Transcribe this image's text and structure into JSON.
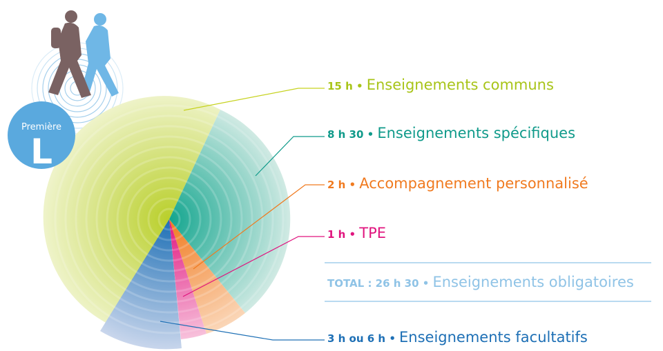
{
  "badge": {
    "top": "Première",
    "letter": "L"
  },
  "items": [
    {
      "hours": "15 h •",
      "label": "Enseignements communs"
    },
    {
      "hours": "8 h 30 •",
      "label": "Enseignements spécifiques"
    },
    {
      "hours": "2 h •",
      "label": "Accompagnement personnalisé"
    },
    {
      "hours": "1 h •",
      "label": "TPE"
    }
  ],
  "total": {
    "hours": "TOTAL : 26 h 30 •",
    "label": "Enseignements obligatoires"
  },
  "optional": {
    "hours": "3 h ou 6 h •",
    "label": "Enseignements facultatifs"
  }
}
